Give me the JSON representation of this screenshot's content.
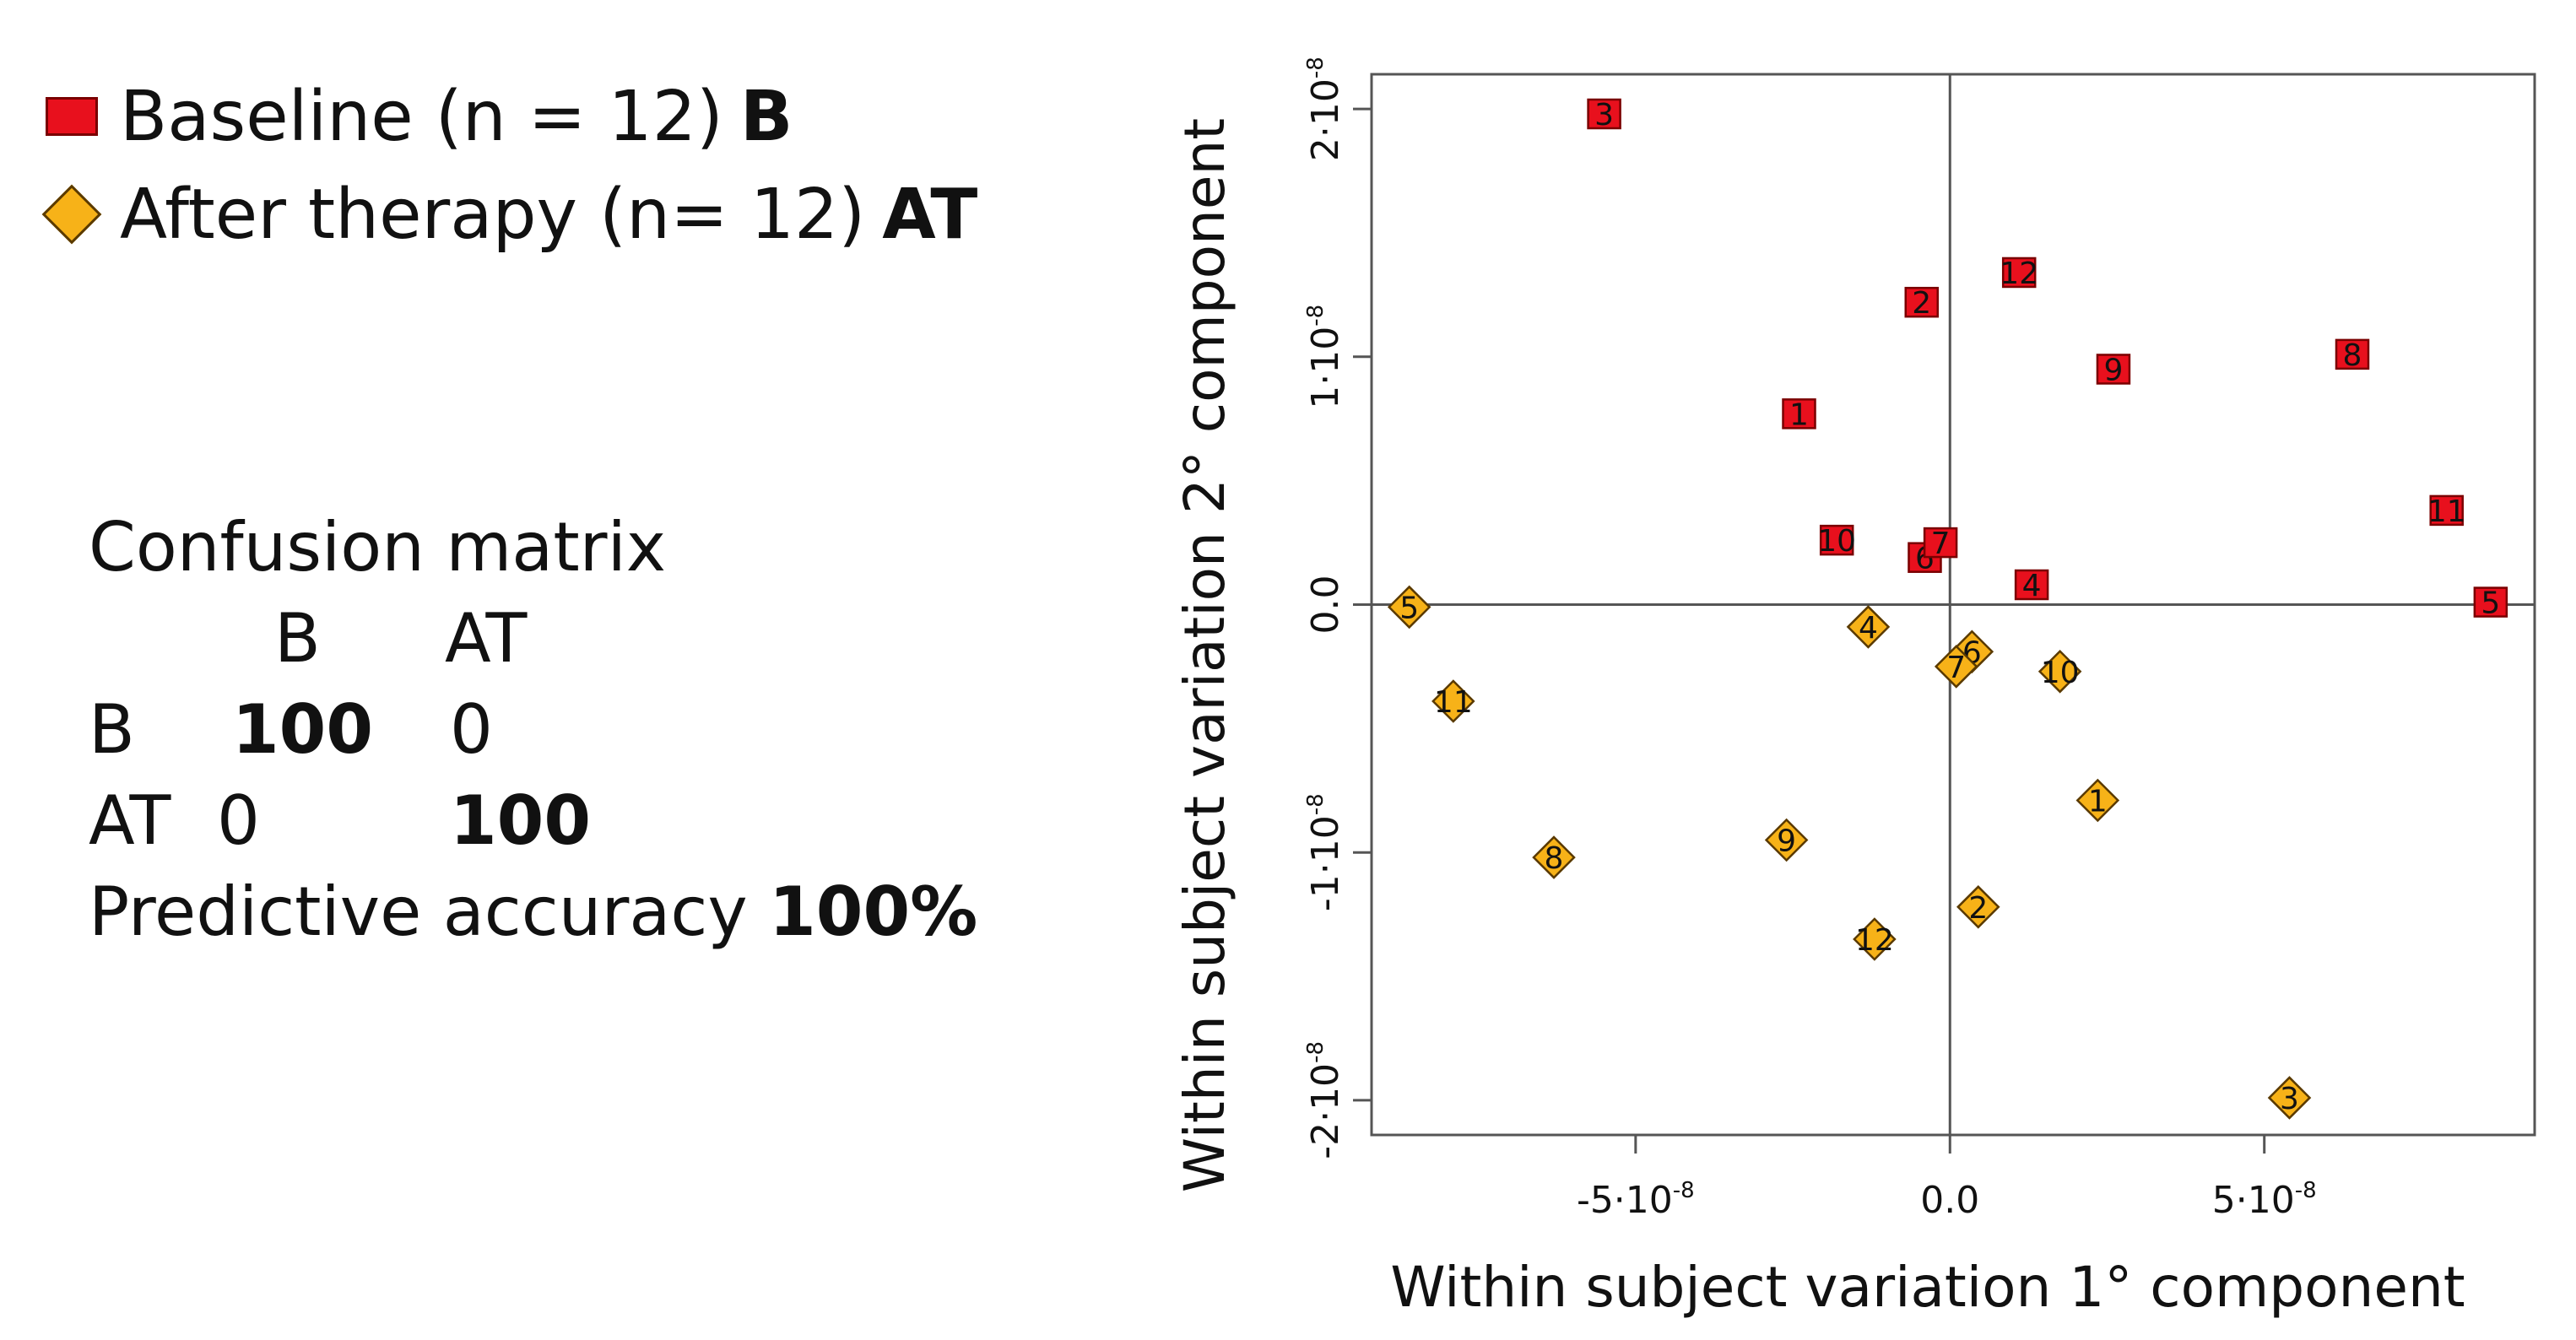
{
  "legend": {
    "baseline": {
      "text": "Baseline (n = 12)",
      "abbr": "B",
      "color": "#e8101d"
    },
    "after": {
      "text": "After therapy (n= 12)",
      "abbr": "AT",
      "color": "#f7b218"
    }
  },
  "confusion": {
    "title": "Confusion matrix",
    "col_b": "B",
    "col_at": "AT",
    "row_b": {
      "label": "B",
      "b": "100",
      "at": "0"
    },
    "row_at": {
      "label": "AT",
      "b": "0",
      "at": "100"
    },
    "accuracy_label": "Predictive accuracy",
    "accuracy_value": "100%"
  },
  "chart_data": {
    "type": "scatter",
    "xlabel": "Within subject variation 1° component",
    "ylabel": "Within subject variation 2° component",
    "xlim": [
      -9.2e-08,
      9.3e-08
    ],
    "ylim": [
      -2.14e-08,
      2.14e-08
    ],
    "x_ticks": [
      {
        "value": -5e-08,
        "label": "-5·10",
        "exp": "-8"
      },
      {
        "value": 0,
        "label": "0.0",
        "exp": ""
      },
      {
        "value": 5e-08,
        "label": "5·10",
        "exp": "-8"
      }
    ],
    "y_ticks": [
      {
        "value": -2e-08,
        "label": "-2·10",
        "exp": "-8"
      },
      {
        "value": -1e-08,
        "label": "-1·10",
        "exp": "-8"
      },
      {
        "value": 0,
        "label": "0.0",
        "exp": ""
      },
      {
        "value": 1e-08,
        "label": "1·10",
        "exp": "-8"
      },
      {
        "value": 2e-08,
        "label": "2·10",
        "exp": "-8"
      }
    ],
    "reference_lines": {
      "x": 0,
      "y": 0
    },
    "grid": false,
    "series": [
      {
        "name": "Baseline (n = 12) B",
        "marker": "square",
        "color": "#e8101d",
        "points": [
          {
            "label": "1",
            "x": -2.4e-08,
            "y": 7.7e-09
          },
          {
            "label": "2",
            "x": -4.5e-09,
            "y": 1.22e-08
          },
          {
            "label": "3",
            "x": -5.5e-08,
            "y": 1.98e-08
          },
          {
            "label": "4",
            "x": 1.3e-08,
            "y": 8e-10
          },
          {
            "label": "5",
            "x": 8.6e-08,
            "y": 1e-10
          },
          {
            "label": "6",
            "x": -4e-09,
            "y": 1.9e-09
          },
          {
            "label": "7",
            "x": -1.5e-09,
            "y": 2.5e-09
          },
          {
            "label": "8",
            "x": 6.4e-08,
            "y": 1.01e-08
          },
          {
            "label": "9",
            "x": 2.6e-08,
            "y": 9.5e-09
          },
          {
            "label": "10",
            "x": -1.8e-08,
            "y": 2.6e-09
          },
          {
            "label": "11",
            "x": 7.9e-08,
            "y": 3.8e-09
          },
          {
            "label": "12",
            "x": 1.1e-08,
            "y": 1.34e-08
          }
        ]
      },
      {
        "name": "After therapy (n= 12) AT",
        "marker": "diamond",
        "color": "#f7b218",
        "points": [
          {
            "label": "1",
            "x": 2.35e-08,
            "y": -7.9e-09
          },
          {
            "label": "2",
            "x": 4.5e-09,
            "y": -1.22e-08
          },
          {
            "label": "3",
            "x": 5.4e-08,
            "y": -1.99e-08
          },
          {
            "label": "4",
            "x": -1.3e-08,
            "y": -9e-10
          },
          {
            "label": "5",
            "x": -8.6e-08,
            "y": -1e-10
          },
          {
            "label": "6",
            "x": 3.5e-09,
            "y": -1.9e-09
          },
          {
            "label": "7",
            "x": 1e-09,
            "y": -2.5e-09
          },
          {
            "label": "8",
            "x": -6.3e-08,
            "y": -1.02e-08
          },
          {
            "label": "9",
            "x": -2.6e-08,
            "y": -9.5e-09
          },
          {
            "label": "10",
            "x": 1.75e-08,
            "y": -2.7e-09
          },
          {
            "label": "11",
            "x": -7.9e-08,
            "y": -3.9e-09
          },
          {
            "label": "12",
            "x": -1.2e-08,
            "y": -1.35e-08
          }
        ]
      }
    ]
  }
}
